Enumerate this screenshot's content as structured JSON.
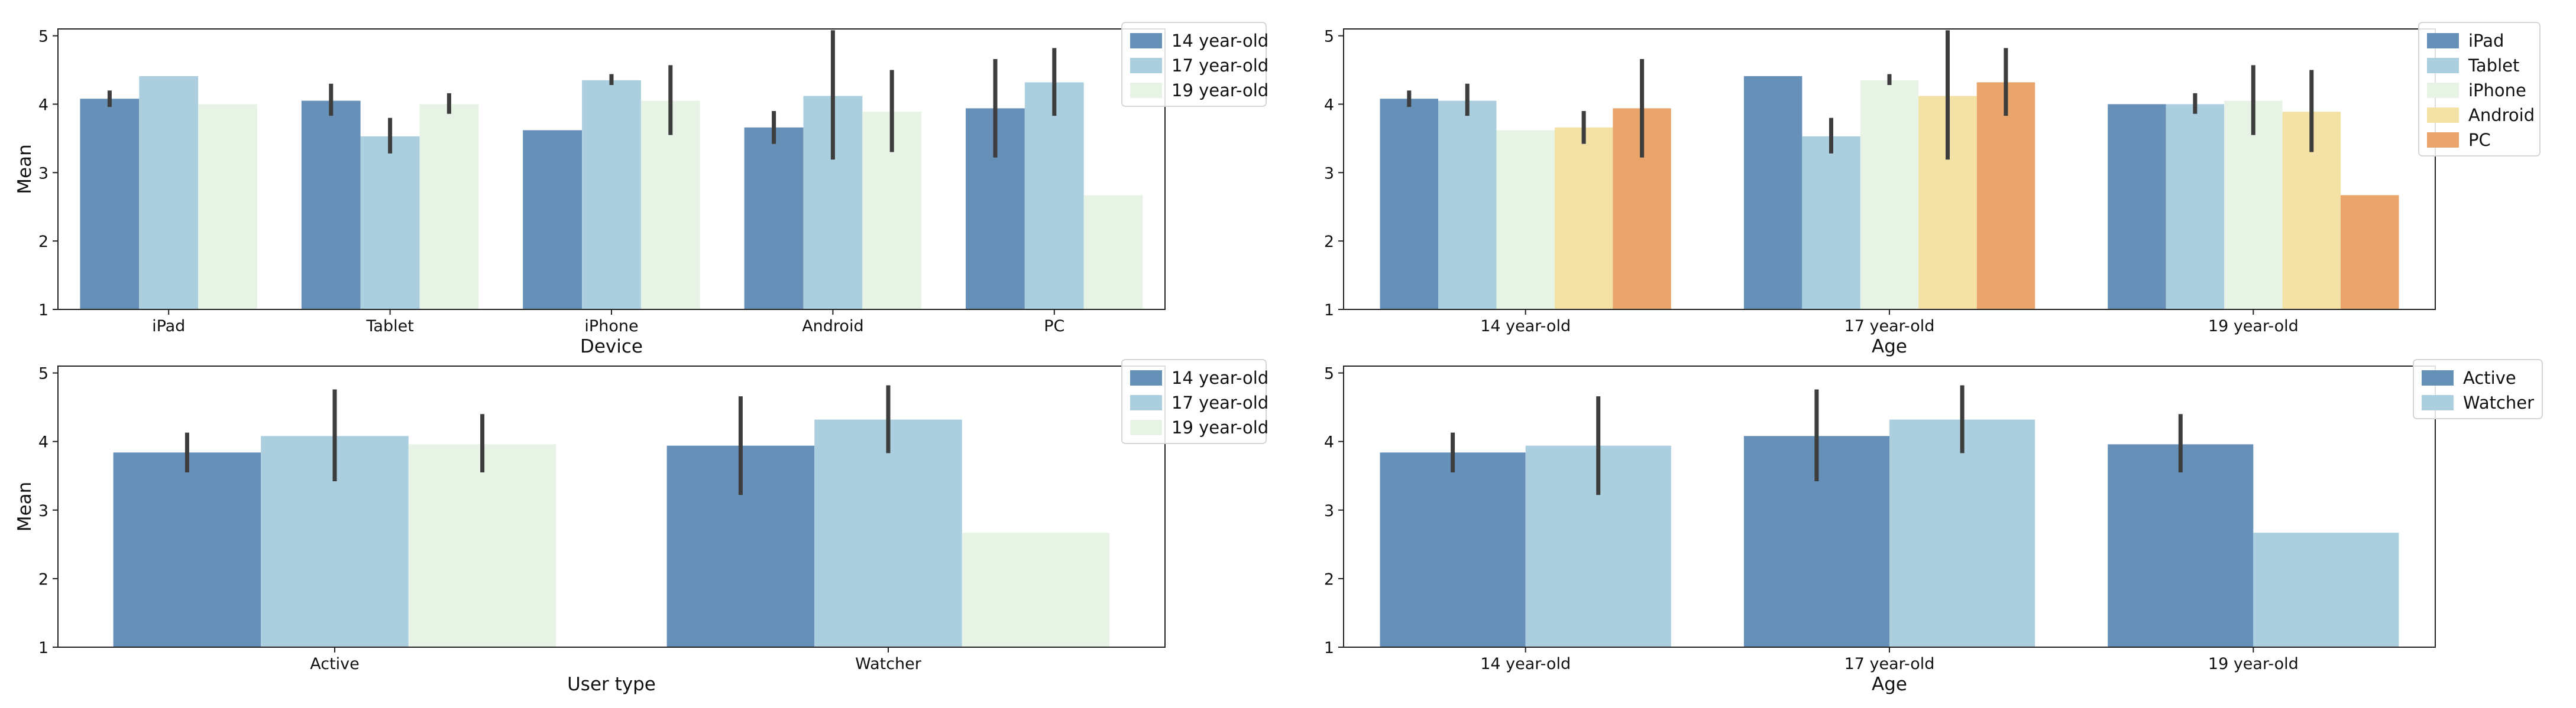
{
  "chart_data": [
    {
      "type": "bar",
      "xlabel": "Device",
      "ylabel": "Mean",
      "ylim": [
        1,
        5.1
      ],
      "yticks": [
        1,
        2,
        3,
        4,
        5
      ],
      "categories": [
        "iPad",
        "Tablet",
        "iPhone",
        "Android",
        "PC"
      ],
      "legend_position": "outside-top-right",
      "series": [
        {
          "name": "14 year-old",
          "color": "#6690b8",
          "values": [
            4.08,
            4.05,
            3.62,
            3.66,
            3.94
          ],
          "errors": [
            [
              3.96,
              4.2
            ],
            [
              3.83,
              4.3
            ],
            null,
            [
              3.42,
              3.9
            ],
            [
              3.22,
              4.66
            ]
          ]
        },
        {
          "name": "17 year-old",
          "color": "#abcfdf",
          "values": [
            4.41,
            3.53,
            4.35,
            4.12,
            4.32
          ],
          "errors": [
            null,
            [
              3.28,
              3.8
            ],
            [
              4.28,
              4.44
            ],
            [
              3.19,
              5.08
            ],
            [
              3.83,
              4.82
            ]
          ]
        },
        {
          "name": "19 year-old",
          "color": "#e7f4e5",
          "values": [
            4.0,
            4.0,
            4.05,
            3.89,
            2.67
          ],
          "errors": [
            null,
            [
              3.86,
              4.16
            ],
            [
              3.55,
              4.57
            ],
            [
              3.3,
              4.5
            ],
            null
          ]
        }
      ]
    },
    {
      "type": "bar",
      "xlabel": "Age",
      "ylabel": "",
      "ylim": [
        1,
        5.1
      ],
      "yticks": [
        1,
        2,
        3,
        4,
        5
      ],
      "categories": [
        "14 year-old",
        "17 year-old",
        "19 year-old"
      ],
      "legend_position": "outside-top-right",
      "series": [
        {
          "name": "iPad",
          "color": "#6690b8",
          "values": [
            4.08,
            4.41,
            4.0
          ],
          "errors": [
            [
              3.96,
              4.2
            ],
            null,
            null
          ]
        },
        {
          "name": "Tablet",
          "color": "#abcfdf",
          "values": [
            4.05,
            3.53,
            4.0
          ],
          "errors": [
            [
              3.83,
              4.3
            ],
            [
              3.28,
              3.8
            ],
            [
              3.86,
              4.16
            ]
          ]
        },
        {
          "name": "iPhone",
          "color": "#e7f4e5",
          "values": [
            3.62,
            4.35,
            4.05
          ],
          "errors": [
            null,
            [
              4.28,
              4.44
            ],
            [
              3.55,
              4.57
            ]
          ]
        },
        {
          "name": "Android",
          "color": "#f3e1a6",
          "values": [
            3.66,
            4.12,
            3.89
          ],
          "errors": [
            [
              3.42,
              3.9
            ],
            [
              3.19,
              5.08
            ],
            [
              3.3,
              4.5
            ]
          ]
        },
        {
          "name": "PC",
          "color": "#e9a56b",
          "values": [
            3.94,
            4.32,
            2.67
          ],
          "errors": [
            [
              3.22,
              4.66
            ],
            [
              3.83,
              4.82
            ],
            null
          ]
        }
      ]
    },
    {
      "type": "bar",
      "xlabel": "User type",
      "ylabel": "Mean",
      "ylim": [
        1,
        5.1
      ],
      "yticks": [
        1,
        2,
        3,
        4,
        5
      ],
      "categories": [
        "Active",
        "Watcher"
      ],
      "legend_position": "outside-top-right",
      "series": [
        {
          "name": "14 year-old",
          "color": "#6690b8",
          "values": [
            3.84,
            3.94
          ],
          "errors": [
            [
              3.55,
              4.13
            ],
            [
              3.22,
              4.66
            ]
          ]
        },
        {
          "name": "17 year-old",
          "color": "#abcfdf",
          "values": [
            4.08,
            4.32
          ],
          "errors": [
            [
              3.42,
              4.76
            ],
            [
              3.83,
              4.82
            ]
          ]
        },
        {
          "name": "19 year-old",
          "color": "#e7f4e5",
          "values": [
            3.96,
            2.67
          ],
          "errors": [
            [
              3.55,
              4.4
            ],
            null
          ]
        }
      ]
    },
    {
      "type": "bar",
      "xlabel": "Age",
      "ylabel": "",
      "ylim": [
        1,
        5.1
      ],
      "yticks": [
        1,
        2,
        3,
        4,
        5
      ],
      "categories": [
        "14 year-old",
        "17 year-old",
        "19 year-old"
      ],
      "legend_position": "outside-top-right",
      "series": [
        {
          "name": "Active",
          "color": "#6690b8",
          "values": [
            3.84,
            4.08,
            3.96
          ],
          "errors": [
            [
              3.55,
              4.13
            ],
            [
              3.42,
              4.76
            ],
            [
              3.55,
              4.4
            ]
          ]
        },
        {
          "name": "Watcher",
          "color": "#abcfdf",
          "values": [
            3.94,
            4.32,
            2.67
          ],
          "errors": [
            [
              3.22,
              4.66
            ],
            [
              3.83,
              4.82
            ],
            null
          ]
        }
      ]
    }
  ]
}
